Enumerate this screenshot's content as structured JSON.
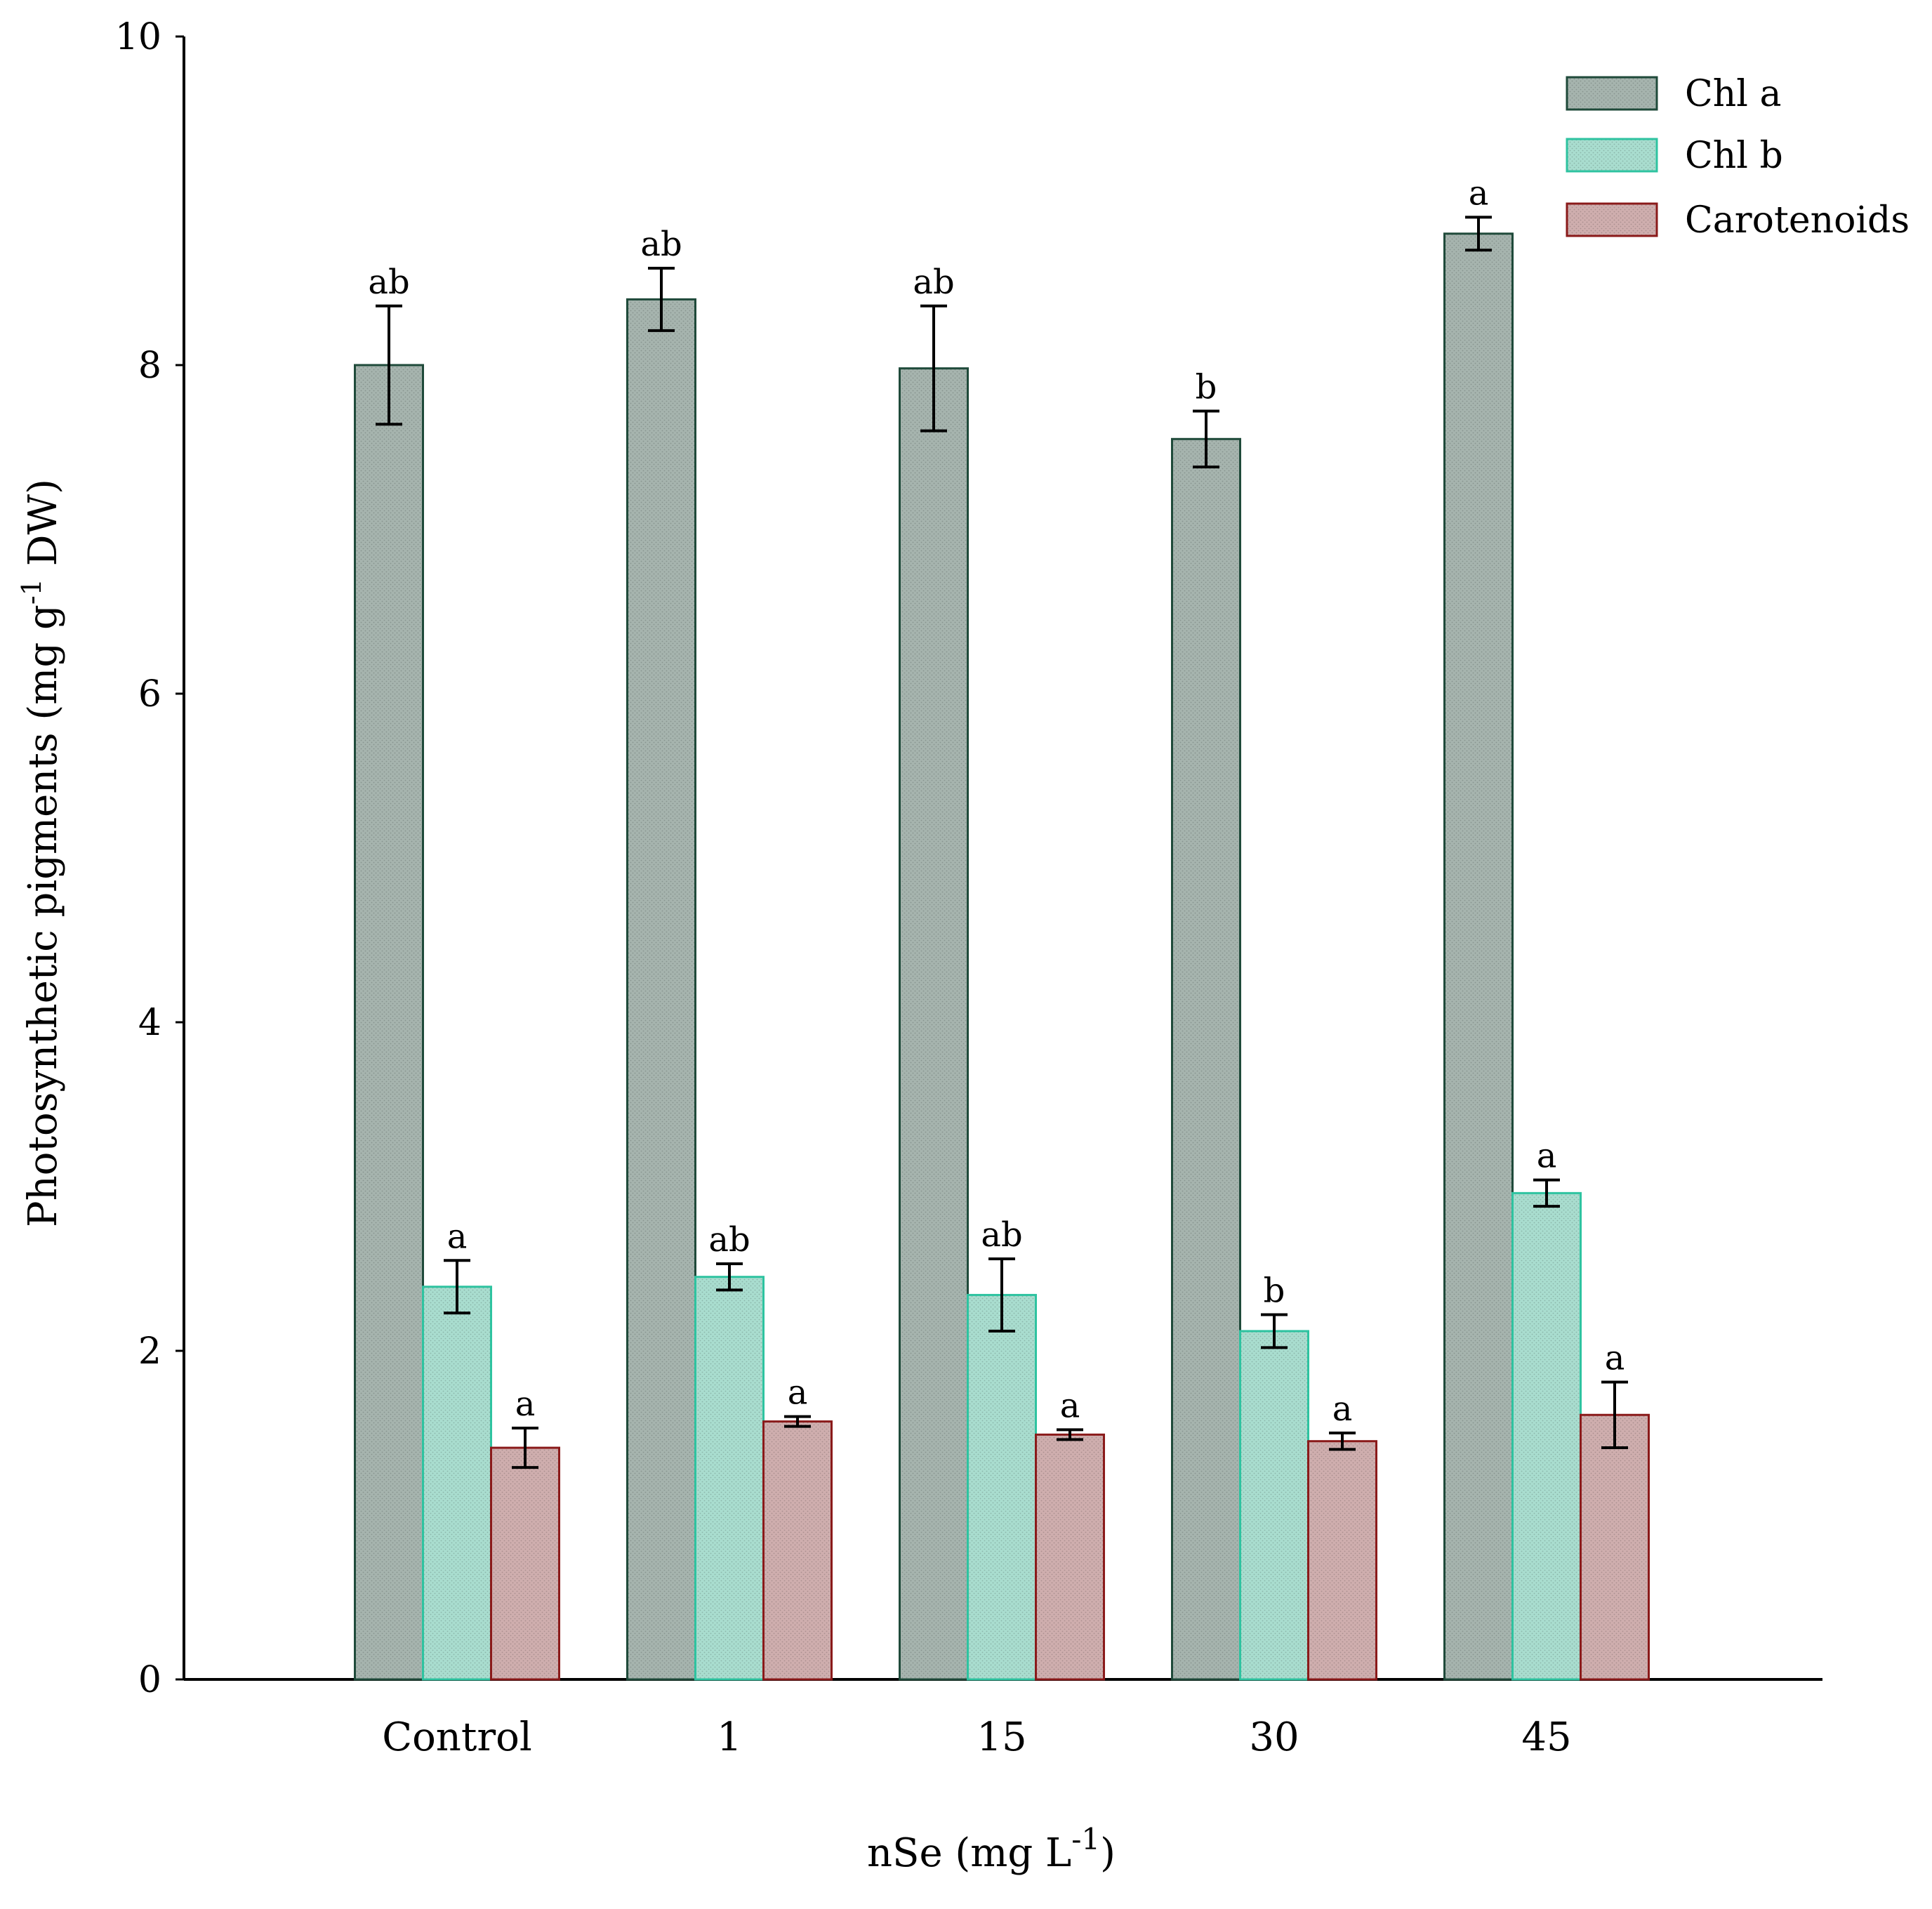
{
  "chart_data": {
    "type": "bar",
    "xlabel_main": "nSe (mg L",
    "xlabel_sup": "-1",
    "xlabel_end": ")",
    "ylabel_main": "Photosynthetic pigments (mg g",
    "ylabel_sup": "-1",
    "ylabel_end": " DW)",
    "ylim": [
      0,
      10
    ],
    "yticks": [
      "0",
      "2",
      "4",
      "6",
      "8",
      "10"
    ],
    "categories": [
      "Control",
      "1",
      "15",
      "30",
      "45"
    ],
    "series": [
      {
        "name": "Chl a",
        "fill": "#a6b4ae",
        "stroke": "#1f4a3a",
        "values": [
          8.0,
          8.4,
          7.98,
          7.55,
          8.8
        ],
        "errors": [
          0.36,
          0.19,
          0.38,
          0.17,
          0.1
        ],
        "letters": [
          "ab",
          "ab",
          "ab",
          "b",
          "a"
        ]
      },
      {
        "name": "Chl b",
        "fill": "#a9ddcf",
        "stroke": "#2ec3a0",
        "values": [
          2.39,
          2.45,
          2.34,
          2.12,
          2.96
        ],
        "errors": [
          0.16,
          0.08,
          0.22,
          0.1,
          0.08
        ],
        "letters": [
          "a",
          "ab",
          "ab",
          "b",
          "a"
        ]
      },
      {
        "name": "Carotenoids",
        "fill": "#cfaeae",
        "stroke": "#8a1a1a",
        "values": [
          1.41,
          1.57,
          1.49,
          1.45,
          1.61
        ],
        "errors": [
          0.12,
          0.03,
          0.03,
          0.05,
          0.2
        ],
        "letters": [
          "a",
          "a",
          "a",
          "a",
          "a"
        ]
      }
    ]
  }
}
